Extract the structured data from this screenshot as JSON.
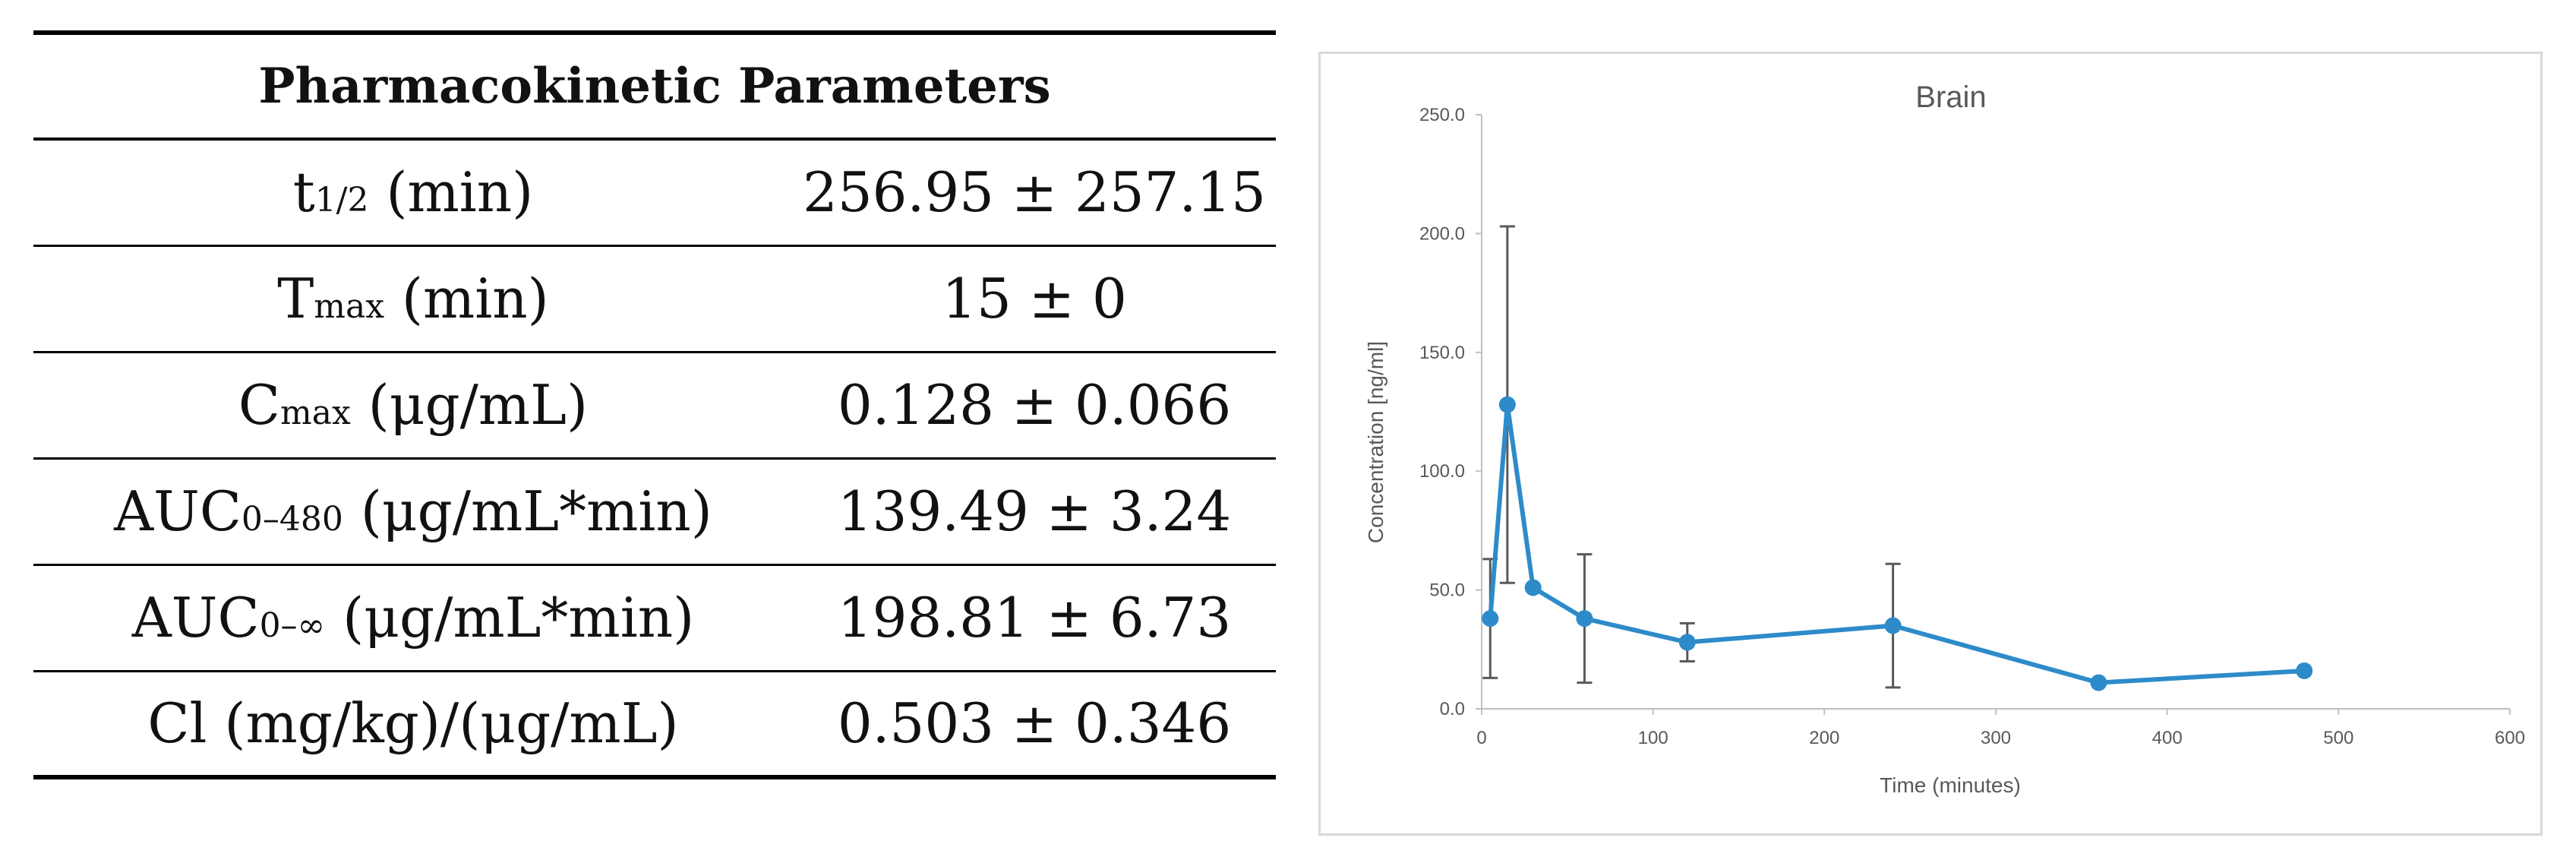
{
  "table": {
    "header": "Pharmacokinetic Parameters",
    "rows": [
      {
        "param_main": "t",
        "param_sub": "1/2",
        "param_rest": " (min)",
        "value": "256.95 ± 257.15"
      },
      {
        "param_main": "T",
        "param_sub": "max",
        "param_rest": " (min)",
        "value": "15 ± 0"
      },
      {
        "param_main": "C",
        "param_sub": "max",
        "param_rest": " (μg/mL)",
        "value": "0.128 ± 0.066"
      },
      {
        "param_main": "AUC",
        "param_sub": "0–480",
        "param_rest": " (μg/mL*min)",
        "value": "139.49 ± 3.24"
      },
      {
        "param_main": "AUC",
        "param_sub": "0–∞",
        "param_rest": " (μg/mL*min)",
        "value": "198.81 ± 6.73"
      },
      {
        "param_main": "Cl (mg/kg)/(μg/mL)",
        "param_sub": "",
        "param_rest": "",
        "value": "0.503 ± 0.346"
      }
    ]
  },
  "chart_data": {
    "type": "line",
    "title": "Brain",
    "xlabel": "Time (minutes)",
    "ylabel": "Concentration [ng/ml]",
    "xlim": [
      0,
      600
    ],
    "ylim": [
      0,
      250
    ],
    "x_ticks": [
      "0",
      "100",
      "200",
      "300",
      "400",
      "500",
      "600"
    ],
    "y_ticks": [
      "0.0",
      "50.0",
      "100.0",
      "150.0",
      "200.0",
      "250.0"
    ],
    "grid": false,
    "series": [
      {
        "x": [
          5,
          15,
          30,
          60,
          120,
          240,
          360,
          480
        ],
        "y": [
          38,
          128,
          51,
          38,
          28,
          35,
          11,
          16
        ],
        "error": [
          25,
          75,
          0,
          27,
          8,
          26,
          0,
          0
        ]
      }
    ],
    "color": "#2e8bc9"
  }
}
